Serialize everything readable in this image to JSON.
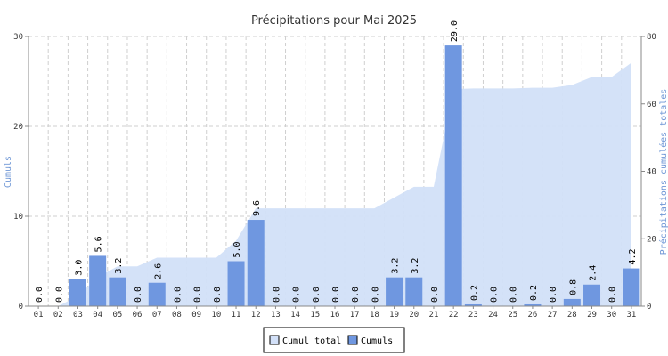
{
  "chart_data": {
    "type": "bar",
    "title": "Précipitations pour Mai 2025",
    "ylabel_left": "Cumuls",
    "ylabel_right": "Précipitations cumulées totales",
    "ylim_left": [
      0,
      30
    ],
    "ylim_right": [
      0,
      80
    ],
    "yticks_left": [
      "0",
      "10",
      "20",
      "30"
    ],
    "yticks_right": [
      "0",
      "20",
      "40",
      "60",
      "80"
    ],
    "grid": true,
    "legend_position": "bottom",
    "categories": [
      "01",
      "02",
      "03",
      "04",
      "05",
      "06",
      "07",
      "08",
      "09",
      "10",
      "11",
      "12",
      "13",
      "14",
      "15",
      "16",
      "17",
      "18",
      "19",
      "20",
      "21",
      "22",
      "23",
      "24",
      "25",
      "26",
      "27",
      "28",
      "29",
      "30",
      "31"
    ],
    "series": [
      {
        "name": "Cumuls",
        "type": "bar",
        "axis": "left",
        "color": "#6f97e0",
        "values": [
          0.0,
          0.0,
          3.0,
          5.6,
          3.2,
          0.0,
          2.6,
          0.0,
          0.0,
          0.0,
          5.0,
          9.6,
          0.0,
          0.0,
          0.0,
          0.0,
          0.0,
          0.0,
          3.2,
          3.2,
          0.0,
          29.0,
          0.2,
          0.0,
          0.0,
          0.2,
          0.0,
          0.8,
          2.4,
          0.0,
          4.2
        ],
        "labels": [
          "0.0",
          "0.0",
          "3.0",
          "5.6",
          "3.2",
          "0.0",
          "2.6",
          "0.0",
          "0.0",
          "0.0",
          "5.0",
          "9.6",
          "0.0",
          "0.0",
          "0.0",
          "0.0",
          "0.0",
          "0.0",
          "3.2",
          "3.2",
          "0.0",
          "29.0",
          "0.2",
          "0.0",
          "0.0",
          "0.2",
          "0.0",
          "0.8",
          "2.4",
          "0.0",
          "4.2"
        ]
      },
      {
        "name": "Cumul total",
        "type": "area",
        "axis": "right",
        "color": "#d2e0f8",
        "values": [
          0.0,
          0.0,
          3.0,
          8.6,
          11.8,
          11.8,
          14.4,
          14.4,
          14.4,
          14.4,
          19.4,
          29.0,
          29.0,
          29.0,
          29.0,
          29.0,
          29.0,
          29.0,
          32.2,
          35.4,
          35.4,
          64.4,
          64.6,
          64.6,
          64.6,
          64.8,
          64.8,
          65.6,
          68.0,
          68.0,
          72.2
        ]
      }
    ]
  }
}
